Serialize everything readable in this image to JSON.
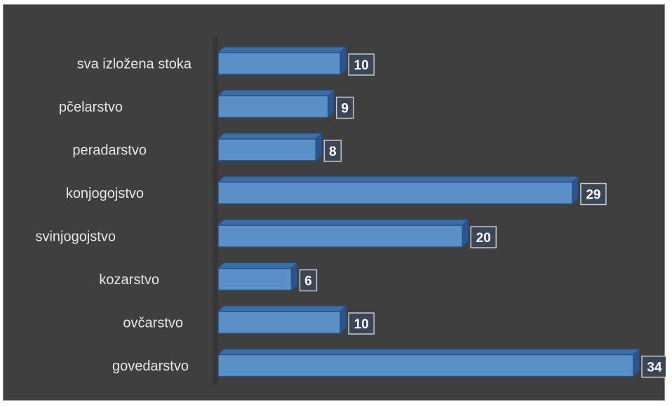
{
  "chart_data": {
    "type": "bar",
    "orientation": "horizontal",
    "style": "3d-clustered-bar",
    "categories": [
      "sva izložena stoka",
      "pčelarstvo",
      "peradarstvo",
      "konjogojstvo",
      "svinjogojstvo",
      "kozarstvo",
      "ovčarstvo",
      "govedarstvo"
    ],
    "values": [
      10,
      9,
      8,
      29,
      20,
      6,
      10,
      34
    ],
    "xlim": [
      0,
      34
    ],
    "grid": false,
    "legend": "none",
    "data_labels": true
  },
  "colors": {
    "background": "#3f3f3f",
    "bar_front": "#5b8fc7",
    "bar_top": "#3a6ea8",
    "bar_side": "#2a5590",
    "bar_outline": "#2b4f7e",
    "label_box": "#3a4656",
    "label_text": "#ffffff",
    "category_text": "#e6e6e6"
  }
}
